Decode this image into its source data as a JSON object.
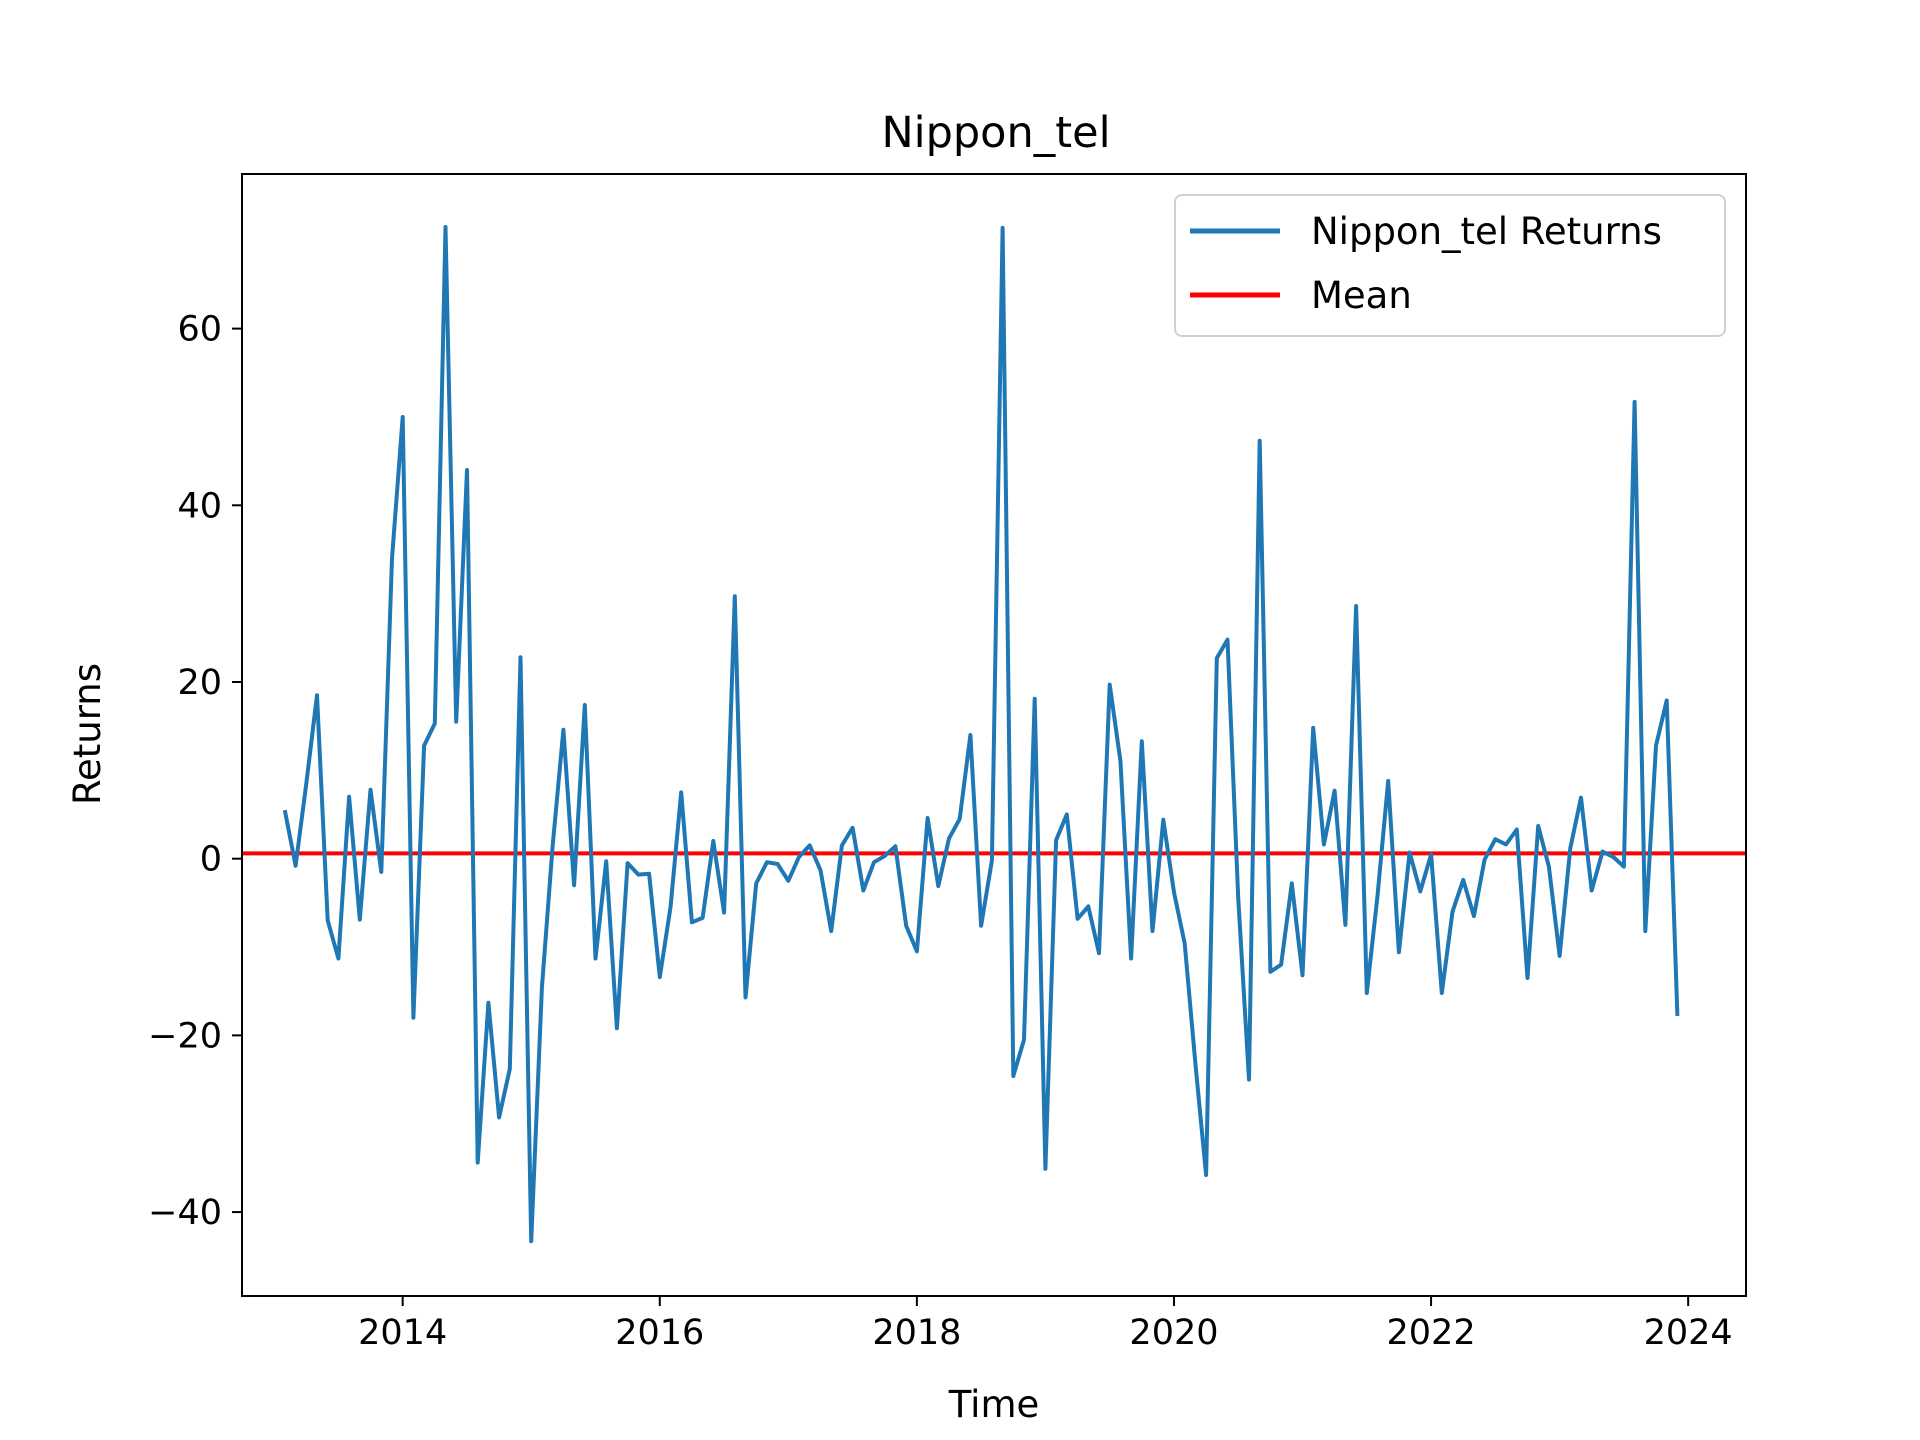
{
  "chart_data": {
    "type": "line",
    "title": "Nippon_tel",
    "xlabel": "Time",
    "ylabel": "Returns",
    "xlim": [
      2012.75,
      2024.45
    ],
    "ylim": [
      -49.5,
      77.5
    ],
    "x_ticks": [
      2014,
      2016,
      2018,
      2020,
      2022,
      2024
    ],
    "x_tick_labels": [
      "2014",
      "2016",
      "2018",
      "2020",
      "2022",
      "2024"
    ],
    "y_ticks": [
      -40,
      -20,
      0,
      20,
      40,
      60
    ],
    "y_tick_labels": [
      "−40",
      "−20",
      "0",
      "20",
      "40",
      "60"
    ],
    "grid": false,
    "legend_position": "top-right",
    "colors": {
      "returns": "#1f77b4",
      "mean": "#ff0000"
    },
    "series": [
      {
        "name": "Nippon_tel Returns",
        "x_start": "2013-02",
        "x_step": "1 month",
        "values": [
          5.5,
          -0.8,
          8.5,
          18.5,
          -7,
          -11.3,
          7,
          -6.9,
          7.8,
          -1.5,
          34,
          50,
          -18,
          12.8,
          15.3,
          71.5,
          15.5,
          44,
          -34.4,
          -16.3,
          -29.3,
          -23.8,
          22.8,
          -43.3,
          -14.6,
          1.5,
          14.6,
          -3,
          17.4,
          -11.3,
          -0.3,
          -19.2,
          -0.5,
          -1.8,
          -1.7,
          -13.4,
          -5.5,
          7.5,
          -7.2,
          -6.7,
          2,
          -6.1,
          29.7,
          -15.7,
          -2.8,
          -0.4,
          -0.6,
          -2.5,
          0.2,
          1.5,
          -1.3,
          -8.2,
          1.5,
          3.5,
          -3.6,
          -0.4,
          0.3,
          1.4,
          -7.6,
          -10.5,
          4.6,
          -3.1,
          2.3,
          4.5,
          14,
          -7.6,
          -0.2,
          71.4,
          -24.6,
          -20.5,
          18.1,
          -35.1,
          2.1,
          5,
          -6.8,
          -5.4,
          -10.7,
          19.7,
          11.1,
          -11.3,
          13.3,
          -8.2,
          4.4,
          -3.8,
          -9.6,
          -23.2,
          -35.8,
          22.7,
          24.8,
          -4.4,
          -25,
          47.3,
          -12.8,
          -12,
          -2.8,
          -13.2,
          14.8,
          1.6,
          7.7,
          -7.5,
          28.6,
          -15.2,
          -4.2,
          8.8,
          -10.6,
          0.7,
          -3.7,
          0.5,
          -15.2,
          -6,
          -2.4,
          -6.5,
          -0.1,
          2.2,
          1.6,
          3.3,
          -13.5,
          3.7,
          -0.9,
          -11,
          1.2,
          6.9,
          -3.6,
          0.8,
          0.2,
          -0.9,
          51.7,
          -8.2,
          12.8,
          17.9,
          -17.8
        ]
      },
      {
        "name": "Mean",
        "values": [
          0.6
        ]
      }
    ]
  }
}
